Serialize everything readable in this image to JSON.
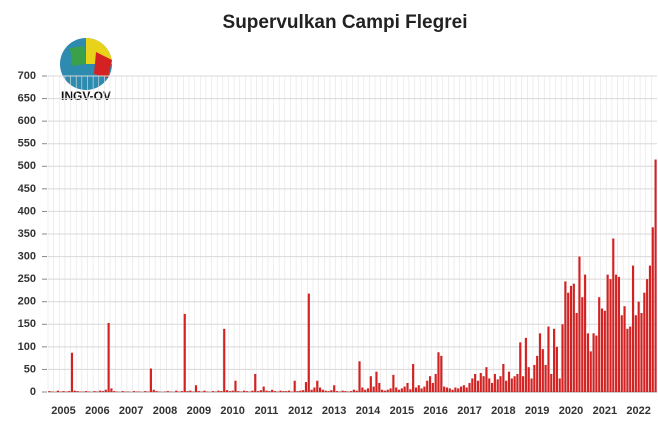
{
  "chart_data": {
    "type": "bar",
    "title": "Supervulkan Campi Flegrei",
    "logo_text": "INGV-OV",
    "categories": [
      null,
      null,
      null,
      null,
      null,
      "2005",
      null,
      null,
      null,
      null,
      null,
      null,
      null,
      null,
      null,
      null,
      null,
      "2006",
      null,
      null,
      null,
      null,
      null,
      null,
      null,
      null,
      null,
      null,
      null,
      "2007",
      null,
      null,
      null,
      null,
      null,
      null,
      null,
      null,
      null,
      null,
      null,
      "2008",
      null,
      null,
      null,
      null,
      null,
      null,
      null,
      null,
      null,
      null,
      null,
      "2009",
      null,
      null,
      null,
      null,
      null,
      null,
      null,
      null,
      null,
      null,
      null,
      "2010",
      null,
      null,
      null,
      null,
      null,
      null,
      null,
      null,
      null,
      null,
      null,
      "2011",
      null,
      null,
      null,
      null,
      null,
      null,
      null,
      null,
      null,
      null,
      null,
      "2012",
      null,
      null,
      null,
      null,
      null,
      null,
      null,
      null,
      null,
      null,
      null,
      "2013",
      null,
      null,
      null,
      null,
      null,
      null,
      null,
      null,
      null,
      null,
      null,
      "2014",
      null,
      null,
      null,
      null,
      null,
      null,
      null,
      null,
      null,
      null,
      null,
      "2015",
      null,
      null,
      null,
      null,
      null,
      null,
      null,
      null,
      null,
      null,
      null,
      "2016",
      null,
      null,
      null,
      null,
      null,
      null,
      null,
      null,
      null,
      null,
      null,
      "2017",
      null,
      null,
      null,
      null,
      null,
      null,
      null,
      null,
      null,
      null,
      null,
      "2018",
      null,
      null,
      null,
      null,
      null,
      null,
      null,
      null,
      null,
      null,
      null,
      "2019",
      null,
      null,
      null,
      null,
      null,
      null,
      null,
      null,
      null,
      null,
      null,
      "2020",
      null,
      null,
      null,
      null,
      null,
      null,
      null,
      null,
      null,
      null,
      null,
      "2021",
      null,
      null,
      null,
      null,
      null,
      null,
      null,
      null,
      null,
      null,
      null,
      "2022",
      null,
      null,
      null,
      null,
      null,
      null
    ],
    "values": [
      2,
      1,
      0,
      3,
      1,
      2,
      1,
      2,
      87,
      3,
      2,
      1,
      1,
      2,
      1,
      0,
      2,
      1,
      3,
      2,
      5,
      153,
      8,
      2,
      1,
      0,
      2,
      1,
      1,
      0,
      2,
      1,
      1,
      0,
      2,
      1,
      52,
      5,
      2,
      1,
      0,
      1,
      2,
      1,
      0,
      3,
      1,
      2,
      173,
      2,
      3,
      1,
      15,
      2,
      1,
      3,
      1,
      0,
      2,
      1,
      3,
      2,
      140,
      4,
      2,
      3,
      25,
      2,
      1,
      3,
      2,
      1,
      3,
      40,
      2,
      4,
      12,
      3,
      2,
      5,
      2,
      1,
      3,
      2,
      2,
      3,
      1,
      25,
      2,
      3,
      4,
      22,
      218,
      5,
      10,
      25,
      10,
      5,
      3,
      2,
      4,
      15,
      2,
      1,
      3,
      2,
      1,
      2,
      5,
      3,
      68,
      10,
      5,
      8,
      35,
      12,
      45,
      20,
      5,
      3,
      5,
      8,
      38,
      10,
      5,
      8,
      12,
      20,
      6,
      62,
      10,
      15,
      8,
      12,
      25,
      35,
      20,
      40,
      88,
      80,
      12,
      10,
      8,
      5,
      10,
      8,
      12,
      15,
      10,
      20,
      30,
      40,
      25,
      42,
      35,
      55,
      30,
      20,
      40,
      28,
      35,
      62,
      25,
      45,
      30,
      35,
      40,
      110,
      35,
      120,
      55,
      30,
      60,
      80,
      130,
      95,
      60,
      145,
      40,
      140,
      100,
      30,
      150,
      245,
      220,
      235,
      240,
      175,
      300,
      210,
      260,
      130,
      90,
      130,
      125,
      210,
      185,
      180,
      260,
      250,
      340,
      260,
      255,
      170,
      190,
      140,
      145,
      280,
      170,
      200,
      175,
      220,
      250,
      280,
      365,
      515
    ],
    "color": "#d42222",
    "ylim": [
      0,
      700
    ],
    "yticks": [
      0,
      50,
      100,
      150,
      200,
      250,
      300,
      350,
      400,
      450,
      500,
      550,
      600,
      650,
      700
    ],
    "grid": true
  }
}
